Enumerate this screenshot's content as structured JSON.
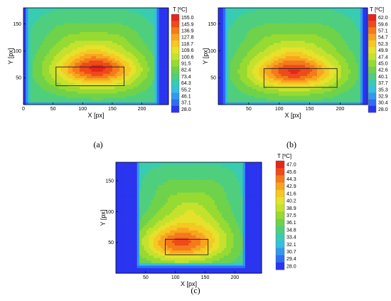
{
  "chart_data": [
    {
      "id": "a",
      "type": "heatmap",
      "panel_label": "(a)",
      "xlabel": "X [px]",
      "ylabel": "Y [px]",
      "xlim": [
        0,
        245
      ],
      "ylim": [
        0,
        180
      ],
      "x_ticks": [
        0,
        50,
        100,
        150,
        200
      ],
      "y_ticks": [
        50,
        100,
        150
      ],
      "colorbar_title": "T [ºC]",
      "colorbar_labels": [
        "155.0",
        "145.9",
        "136.9",
        "127.8",
        "118.7",
        "109.6",
        "100.6",
        "91.5",
        "82.4",
        "73.4",
        "64.3",
        "55.2",
        "46.1",
        "37.1",
        "28.0"
      ],
      "t_range": [
        28.0,
        155.0
      ],
      "domain": [
        10,
        222,
        5,
        178
      ],
      "hotspot": {
        "x": 125,
        "y": 65,
        "peak": 150
      },
      "rectangle": {
        "x0": 55,
        "x1": 170,
        "y0": 35,
        "y1": 70
      }
    },
    {
      "id": "b",
      "type": "heatmap",
      "panel_label": "(b)",
      "xlabel": "X [px]",
      "ylabel": "Y [px]",
      "xlim": [
        0,
        245
      ],
      "ylim": [
        0,
        180
      ],
      "x_ticks": [
        50,
        100,
        150,
        200
      ],
      "y_ticks": [
        50,
        100,
        150
      ],
      "colorbar_title": "T [ºC]",
      "colorbar_labels": [
        "62.0",
        "59.6",
        "57.1",
        "54.7",
        "52.3",
        "49.9",
        "47.4",
        "45.0",
        "42.6",
        "40.1",
        "37.7",
        "35.3",
        "32.9",
        "30.4",
        "28.0"
      ],
      "t_range": [
        28.0,
        62.0
      ],
      "domain": [
        15,
        232,
        5,
        178
      ],
      "hotspot": {
        "x": 125,
        "y": 60,
        "peak": 61
      },
      "rectangle": {
        "x0": 75,
        "x1": 195,
        "y0": 32,
        "y1": 67
      }
    },
    {
      "id": "c",
      "type": "heatmap",
      "panel_label": "(c)",
      "xlabel": "X [px]",
      "ylabel": "Y [px]",
      "xlim": [
        0,
        245
      ],
      "ylim": [
        0,
        180
      ],
      "x_ticks": [
        50,
        100,
        150,
        200
      ],
      "y_ticks": [
        50,
        100,
        150
      ],
      "colorbar_title": "T [ºC]",
      "colorbar_labels": [
        "47.0",
        "45.6",
        "44.3",
        "42.9",
        "41.6",
        "40.2",
        "38.9",
        "37.5",
        "36.1",
        "34.8",
        "33.4",
        "32.1",
        "30.7",
        "29.4",
        "28.0"
      ],
      "t_range": [
        28.0,
        47.0
      ],
      "domain": [
        40,
        212,
        15,
        178
      ],
      "hotspot": {
        "x": 110,
        "y": 48,
        "peak": 47
      },
      "rectangle": {
        "x0": 83,
        "x1": 155,
        "y0": 30,
        "y1": 55
      }
    }
  ]
}
